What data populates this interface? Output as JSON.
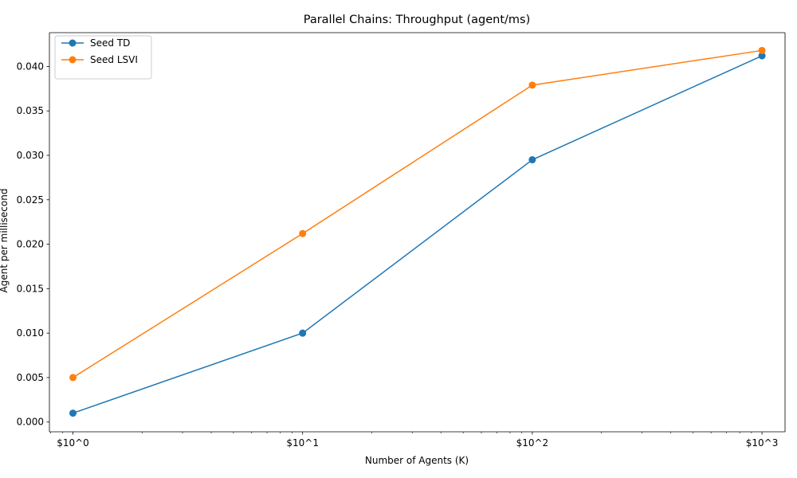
{
  "chart_data": {
    "type": "line",
    "title": "Parallel Chains: Throughput (agent/ms)",
    "xlabel": "Number of Agents (K)",
    "ylabel": "Agent per millisecond",
    "x_scale": "log",
    "x": [
      1,
      10,
      100,
      1000
    ],
    "x_tick_labels": [
      "$10^0",
      "$10^1",
      "$10^2",
      "$10^3"
    ],
    "xlim": [
      0.79,
      1260
    ],
    "ylim": [
      -0.0011,
      0.0438
    ],
    "y_ticks": [
      0.0,
      0.005,
      0.01,
      0.015,
      0.02,
      0.025,
      0.03,
      0.035,
      0.04
    ],
    "y_tick_labels": [
      "0.000",
      "0.005",
      "0.010",
      "0.015",
      "0.020",
      "0.025",
      "0.030",
      "0.035",
      "0.040"
    ],
    "grid": false,
    "legend_position": "top-left",
    "series": [
      {
        "name": "Seed TD",
        "color": "#1f77b4",
        "values": [
          0.001,
          0.01,
          0.0295,
          0.0412
        ]
      },
      {
        "name": "Seed LSVI",
        "color": "#ff7f0e",
        "values": [
          0.005,
          0.0212,
          0.0379,
          0.0418
        ]
      }
    ]
  }
}
